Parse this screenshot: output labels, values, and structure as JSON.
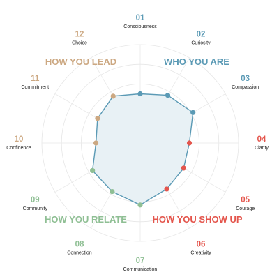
{
  "chart_data": {
    "type": "radar",
    "max_value": 10,
    "grid_rings": 5,
    "fill_color": "#e8f1f5",
    "line_color": "#5b9ab5",
    "axes": [
      {
        "number": "01",
        "label": "Consciousness",
        "value": 5.0,
        "group": "who"
      },
      {
        "number": "02",
        "label": "Curiosity",
        "value": 5.6,
        "group": "who"
      },
      {
        "number": "03",
        "label": "Compassion",
        "value": 6.2,
        "group": "who"
      },
      {
        "number": "04",
        "label": "Clarity",
        "value": 5.0,
        "group": "show"
      },
      {
        "number": "05",
        "label": "Courage",
        "value": 5.1,
        "group": "show"
      },
      {
        "number": "06",
        "label": "Creativity",
        "value": 5.4,
        "group": "show"
      },
      {
        "number": "07",
        "label": "Communication",
        "value": 6.3,
        "group": "relate"
      },
      {
        "number": "08",
        "label": "Connection",
        "value": 5.7,
        "group": "relate"
      },
      {
        "number": "09",
        "label": "Community",
        "value": 5.6,
        "group": "relate"
      },
      {
        "number": "10",
        "label": "Confidence",
        "value": 4.5,
        "group": "lead"
      },
      {
        "number": "11",
        "label": "Commitment",
        "value": 5.0,
        "group": "lead"
      },
      {
        "number": "12",
        "label": "Choice",
        "value": 5.5,
        "group": "lead"
      }
    ],
    "groups": {
      "who": {
        "label": "WHO YOU ARE",
        "color": "#5b9ab5"
      },
      "show": {
        "label": "HOW YOU SHOW UP",
        "color": "#e4554c"
      },
      "relate": {
        "label": "HOW YOU RELATE",
        "color": "#8fbf94"
      },
      "lead": {
        "label": "HOW YOU LEAD",
        "color": "#cca882"
      }
    }
  }
}
